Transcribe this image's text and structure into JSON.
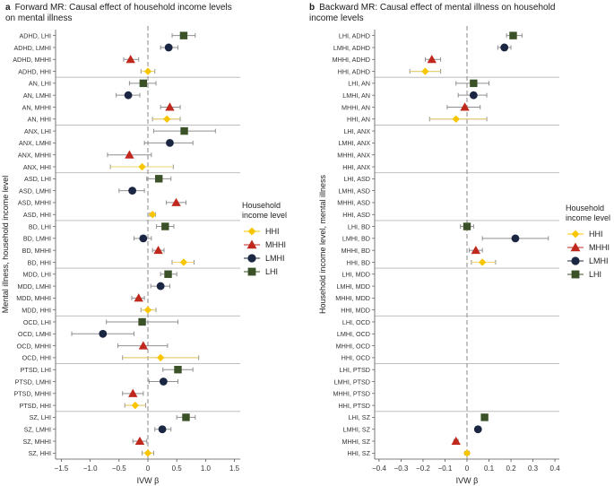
{
  "panels": [
    {
      "letter": "a",
      "title_line1": "Forward MR: Causal effect of household income levels",
      "title_line2": "on mental illness",
      "ylabel": "Mental illness, household income level",
      "xlabel": "IVW β"
    },
    {
      "letter": "b",
      "title_line1": "Backward MR: Causal effect of mental illness on household",
      "title_line2": "income levels",
      "ylabel": "Household income level, mental illness",
      "xlabel": "IVW β"
    }
  ],
  "legend": {
    "title_line1": "Household",
    "title_line2": "income level",
    "entries": [
      {
        "label": "HHI",
        "marker": "diamond",
        "color": "#f7c600"
      },
      {
        "label": "MHHI",
        "marker": "triangle",
        "color": "#c0281e"
      },
      {
        "label": "LMHI",
        "marker": "circle",
        "color": "#1b2742"
      },
      {
        "label": "LHI",
        "marker": "square",
        "color": "#3b5228"
      }
    ]
  },
  "chart_data": [
    {
      "type": "forest",
      "title": "Forward MR: Causal effect of household income levels on mental illness",
      "xlabel": "IVW β",
      "ylabel": "Mental illness, household income level",
      "xlim": [
        -1.6,
        1.6
      ],
      "xticks": [
        -1.5,
        -1.0,
        -0.5,
        0,
        0.5,
        1.0,
        1.5
      ],
      "tick_labels": [
        "−1.5",
        "−1.0",
        "−0.5",
        "0",
        "0.5",
        "1.0",
        "1.5"
      ],
      "reference_line": 0,
      "groups": [
        {
          "name": "ADHD",
          "rows": [
            {
              "label": "ADHD, LHI",
              "level": "LHI",
              "est": 0.62,
              "lo": 0.42,
              "hi": 0.82
            },
            {
              "label": "ADHD, LMHI",
              "level": "LMHI",
              "est": 0.36,
              "lo": 0.22,
              "hi": 0.52
            },
            {
              "label": "ADHD, MHHI",
              "level": "MHHI",
              "est": -0.3,
              "lo": -0.42,
              "hi": -0.16
            },
            {
              "label": "ADHD, HHI",
              "level": "HHI",
              "est": 0.0,
              "lo": -0.12,
              "hi": 0.12
            }
          ]
        },
        {
          "name": "AN",
          "rows": [
            {
              "label": "AN, LHI",
              "level": "LHI",
              "est": -0.08,
              "lo": -0.32,
              "hi": 0.14
            },
            {
              "label": "AN, LMHI",
              "level": "LMHI",
              "est": -0.34,
              "lo": -0.55,
              "hi": -0.14
            },
            {
              "label": "AN, MHHI",
              "level": "MHHI",
              "est": 0.38,
              "lo": 0.22,
              "hi": 0.56
            },
            {
              "label": "AN, HHI",
              "level": "HHI",
              "est": 0.33,
              "lo": 0.08,
              "hi": 0.56
            }
          ]
        },
        {
          "name": "ANX",
          "rows": [
            {
              "label": "ANX, LHI",
              "level": "LHI",
              "est": 0.63,
              "lo": 0.1,
              "hi": 1.17
            },
            {
              "label": "ANX, LMHI",
              "level": "LMHI",
              "est": 0.38,
              "lo": -0.06,
              "hi": 0.78
            },
            {
              "label": "ANX, MHHI",
              "level": "MHHI",
              "est": -0.32,
              "lo": -0.7,
              "hi": 0.06
            },
            {
              "label": "ANX, HHI",
              "level": "HHI",
              "est": -0.1,
              "lo": -0.65,
              "hi": 0.44
            }
          ]
        },
        {
          "name": "ASD",
          "rows": [
            {
              "label": "ASD, LHI",
              "level": "LHI",
              "est": 0.19,
              "lo": -0.02,
              "hi": 0.4
            },
            {
              "label": "ASD, LMHI",
              "level": "LMHI",
              "est": -0.27,
              "lo": -0.5,
              "hi": -0.06
            },
            {
              "label": "ASD, MHHI",
              "level": "MHHI",
              "est": 0.49,
              "lo": 0.32,
              "hi": 0.66
            },
            {
              "label": "ASD, HHI",
              "level": "HHI",
              "est": 0.08,
              "lo": 0.03,
              "hi": 0.13
            }
          ]
        },
        {
          "name": "BD",
          "rows": [
            {
              "label": "BD, LHI",
              "level": "LHI",
              "est": 0.3,
              "lo": 0.15,
              "hi": 0.45
            },
            {
              "label": "BD, LMHI",
              "level": "LMHI",
              "est": -0.08,
              "lo": -0.24,
              "hi": 0.06
            },
            {
              "label": "BD, MHHI",
              "level": "MHHI",
              "est": 0.18,
              "lo": 0.08,
              "hi": 0.28
            },
            {
              "label": "BD, HHI",
              "level": "HHI",
              "est": 0.62,
              "lo": 0.42,
              "hi": 0.8
            }
          ]
        },
        {
          "name": "MDD",
          "rows": [
            {
              "label": "MDD, LHI",
              "level": "LHI",
              "est": 0.35,
              "lo": 0.22,
              "hi": 0.5
            },
            {
              "label": "MDD, LMHI",
              "level": "LMHI",
              "est": 0.22,
              "lo": 0.05,
              "hi": 0.38
            },
            {
              "label": "MDD, MHHI",
              "level": "MHHI",
              "est": -0.16,
              "lo": -0.28,
              "hi": -0.06
            },
            {
              "label": "MDD, HHI",
              "level": "HHI",
              "est": 0.0,
              "lo": -0.12,
              "hi": 0.14
            }
          ]
        },
        {
          "name": "OCD",
          "rows": [
            {
              "label": "OCD, LHI",
              "level": "LHI",
              "est": -0.1,
              "lo": -0.72,
              "hi": 0.52
            },
            {
              "label": "OCD, LMHI",
              "level": "LMHI",
              "est": -0.78,
              "lo": -1.32,
              "hi": -0.24
            },
            {
              "label": "OCD, MHHI",
              "level": "MHHI",
              "est": -0.08,
              "lo": -0.52,
              "hi": 0.34
            },
            {
              "label": "OCD, HHI",
              "level": "HHI",
              "est": 0.22,
              "lo": -0.44,
              "hi": 0.88
            }
          ]
        },
        {
          "name": "PTSD",
          "rows": [
            {
              "label": "PTSD, LHI",
              "level": "LHI",
              "est": 0.52,
              "lo": 0.26,
              "hi": 0.78
            },
            {
              "label": "PTSD, LMHI",
              "level": "LMHI",
              "est": 0.27,
              "lo": 0.02,
              "hi": 0.52
            },
            {
              "label": "PTSD, MHHI",
              "level": "MHHI",
              "est": -0.26,
              "lo": -0.44,
              "hi": -0.08
            },
            {
              "label": "PTSD, HHI",
              "level": "HHI",
              "est": -0.22,
              "lo": -0.4,
              "hi": -0.04
            }
          ]
        },
        {
          "name": "SZ",
          "rows": [
            {
              "label": "SZ, LHI",
              "level": "LHI",
              "est": 0.66,
              "lo": 0.5,
              "hi": 0.82
            },
            {
              "label": "SZ, LMHI",
              "level": "LMHI",
              "est": 0.25,
              "lo": 0.12,
              "hi": 0.4
            },
            {
              "label": "SZ, MHHI",
              "level": "MHHI",
              "est": -0.14,
              "lo": -0.26,
              "hi": -0.02
            },
            {
              "label": "SZ, HHI",
              "level": "HHI",
              "est": 0.0,
              "lo": -0.1,
              "hi": 0.1
            }
          ]
        }
      ]
    },
    {
      "type": "forest",
      "title": "Backward MR: Causal effect of mental illness on household income levels",
      "xlabel": "IVW β",
      "ylabel": "Household income level, mental illness",
      "xlim": [
        -0.42,
        0.42
      ],
      "xticks": [
        -0.4,
        -0.3,
        -0.2,
        -0.1,
        0,
        0.1,
        0.2,
        0.3,
        0.4
      ],
      "tick_labels": [
        "−0.4",
        "−0.3",
        "−0.2",
        "−0.1",
        "0",
        "0.1",
        "0.2",
        "0.3",
        "0.4"
      ],
      "reference_line": 0,
      "groups": [
        {
          "name": "ADHD",
          "rows": [
            {
              "label": "LHI, ADHD",
              "level": "LHI",
              "est": 0.21,
              "lo": 0.18,
              "hi": 0.25
            },
            {
              "label": "LMHI, ADHD",
              "level": "LMHI",
              "est": 0.17,
              "lo": 0.14,
              "hi": 0.2
            },
            {
              "label": "MHHI, ADHD",
              "level": "MHHI",
              "est": -0.16,
              "lo": -0.19,
              "hi": -0.12
            },
            {
              "label": "HHI, ADHD",
              "level": "HHI",
              "est": -0.19,
              "lo": -0.26,
              "hi": -0.12
            }
          ]
        },
        {
          "name": "AN",
          "rows": [
            {
              "label": "LHI, AN",
              "level": "LHI",
              "est": 0.03,
              "lo": -0.05,
              "hi": 0.1
            },
            {
              "label": "LMHI, AN",
              "level": "LMHI",
              "est": 0.03,
              "lo": -0.04,
              "hi": 0.09
            },
            {
              "label": "MHHI, AN",
              "level": "MHHI",
              "est": -0.01,
              "lo": -0.09,
              "hi": 0.06
            },
            {
              "label": "HHI, AN",
              "level": "HHI",
              "est": -0.05,
              "lo": -0.17,
              "hi": 0.09
            }
          ]
        },
        {
          "name": "ANX",
          "rows": [
            {
              "label": "LHI, ANX",
              "level": "LHI",
              "est": null,
              "lo": null,
              "hi": null
            },
            {
              "label": "LMHI, ANX",
              "level": "LMHI",
              "est": null,
              "lo": null,
              "hi": null
            },
            {
              "label": "MHHI, ANX",
              "level": "MHHI",
              "est": null,
              "lo": null,
              "hi": null
            },
            {
              "label": "HHI, ANX",
              "level": "HHI",
              "est": null,
              "lo": null,
              "hi": null
            }
          ]
        },
        {
          "name": "ASD",
          "rows": [
            {
              "label": "LHI, ASD",
              "level": "LHI",
              "est": null,
              "lo": null,
              "hi": null
            },
            {
              "label": "LMHI, ASD",
              "level": "LMHI",
              "est": null,
              "lo": null,
              "hi": null
            },
            {
              "label": "MHHI, ASD",
              "level": "MHHI",
              "est": null,
              "lo": null,
              "hi": null
            },
            {
              "label": "HHI, ASD",
              "level": "HHI",
              "est": null,
              "lo": null,
              "hi": null
            }
          ]
        },
        {
          "name": "BD",
          "rows": [
            {
              "label": "LHI, BD",
              "level": "LHI",
              "est": 0.0,
              "lo": -0.03,
              "hi": 0.03
            },
            {
              "label": "LMHI, BD",
              "level": "LMHI",
              "est": 0.22,
              "lo": 0.07,
              "hi": 0.37
            },
            {
              "label": "MHHI, BD",
              "level": "MHHI",
              "est": 0.04,
              "lo": 0.01,
              "hi": 0.07
            },
            {
              "label": "HHI, BD",
              "level": "HHI",
              "est": 0.07,
              "lo": 0.02,
              "hi": 0.13
            }
          ]
        },
        {
          "name": "MDD",
          "rows": [
            {
              "label": "LHI, MDD",
              "level": "LHI",
              "est": null,
              "lo": null,
              "hi": null
            },
            {
              "label": "LMHI, MDD",
              "level": "LMHI",
              "est": null,
              "lo": null,
              "hi": null
            },
            {
              "label": "MHHI, MDD",
              "level": "MHHI",
              "est": null,
              "lo": null,
              "hi": null
            },
            {
              "label": "HHI, MDD",
              "level": "HHI",
              "est": null,
              "lo": null,
              "hi": null
            }
          ]
        },
        {
          "name": "OCD",
          "rows": [
            {
              "label": "LHI, OCD",
              "level": "LHI",
              "est": null,
              "lo": null,
              "hi": null
            },
            {
              "label": "LMHI, OCD",
              "level": "LMHI",
              "est": null,
              "lo": null,
              "hi": null
            },
            {
              "label": "MHHI, OCD",
              "level": "MHHI",
              "est": null,
              "lo": null,
              "hi": null
            },
            {
              "label": "HHI, OCD",
              "level": "HHI",
              "est": null,
              "lo": null,
              "hi": null
            }
          ]
        },
        {
          "name": "PTSD",
          "rows": [
            {
              "label": "LHI, PTSD",
              "level": "LHI",
              "est": null,
              "lo": null,
              "hi": null
            },
            {
              "label": "LMHI, PTSD",
              "level": "LMHI",
              "est": null,
              "lo": null,
              "hi": null
            },
            {
              "label": "MHHI, PTSD",
              "level": "MHHI",
              "est": null,
              "lo": null,
              "hi": null
            },
            {
              "label": "HHI, PTSD",
              "level": "HHI",
              "est": null,
              "lo": null,
              "hi": null
            }
          ]
        },
        {
          "name": "SZ",
          "rows": [
            {
              "label": "LHI, SZ",
              "level": "LHI",
              "est": 0.08,
              "lo": 0.07,
              "hi": 0.09
            },
            {
              "label": "LMHI, SZ",
              "level": "LMHI",
              "est": 0.05,
              "lo": 0.04,
              "hi": 0.06
            },
            {
              "label": "MHHI, SZ",
              "level": "MHHI",
              "est": -0.05,
              "lo": -0.06,
              "hi": -0.04
            },
            {
              "label": "HHI, SZ",
              "level": "HHI",
              "est": 0.0,
              "lo": -0.01,
              "hi": 0.01
            }
          ]
        }
      ]
    }
  ]
}
